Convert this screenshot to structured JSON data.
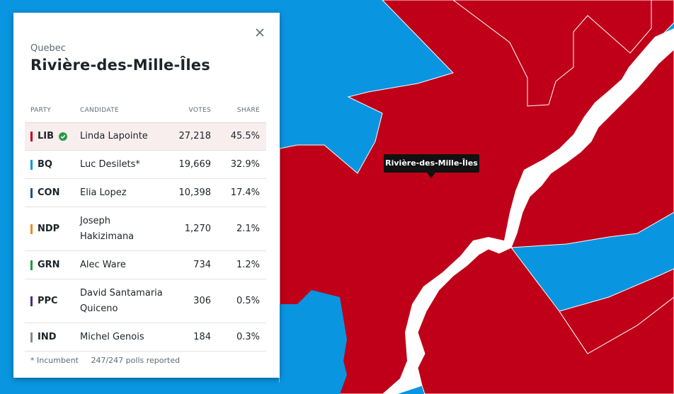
{
  "colors": {
    "lib": "#bf0018",
    "bq": "#0a95e0",
    "con": "#20508a",
    "ndp": "#f08c1c",
    "grn": "#1f9a3b",
    "ppc": "#4a2a88",
    "ind": "#888888",
    "water": "#ffffff",
    "check": "#2a9a49"
  },
  "panel": {
    "province": "Quebec",
    "riding": "Rivière-des-Mille-Îles",
    "close_icon": "close-icon"
  },
  "table": {
    "headers": {
      "party": "PARTY",
      "candidate": "CANDIDATE",
      "votes": "VOTES",
      "share": "SHARE"
    },
    "rows": [
      {
        "party": "LIB",
        "candidate": "Linda Lapointe",
        "votes": "27,218",
        "share": "45.5%",
        "color": "#bf0018",
        "winner": true
      },
      {
        "party": "BQ",
        "candidate": "Luc Desilets*",
        "votes": "19,669",
        "share": "32.9%",
        "color": "#0a95e0",
        "winner": false
      },
      {
        "party": "CON",
        "candidate": "Elia Lopez",
        "votes": "10,398",
        "share": "17.4%",
        "color": "#20508a",
        "winner": false
      },
      {
        "party": "NDP",
        "candidate": "Joseph Hakizimana",
        "votes": "1,270",
        "share": "2.1%",
        "color": "#f08c1c",
        "winner": false
      },
      {
        "party": "GRN",
        "candidate": "Alec Ware",
        "votes": "734",
        "share": "1.2%",
        "color": "#1f9a3b",
        "winner": false
      },
      {
        "party": "PPC",
        "candidate": "David Santamaria Quiceno",
        "votes": "306",
        "share": "0.5%",
        "color": "#4a2a88",
        "winner": false
      },
      {
        "party": "IND",
        "candidate": "Michel Genois",
        "votes": "184",
        "share": "0.3%",
        "color": "#888888",
        "winner": false
      }
    ]
  },
  "footer": {
    "incumbent_note": "* Incumbent",
    "polls": "247/247 polls reported"
  },
  "map": {
    "tooltip": "Rivière-des-Mille-Îles"
  }
}
